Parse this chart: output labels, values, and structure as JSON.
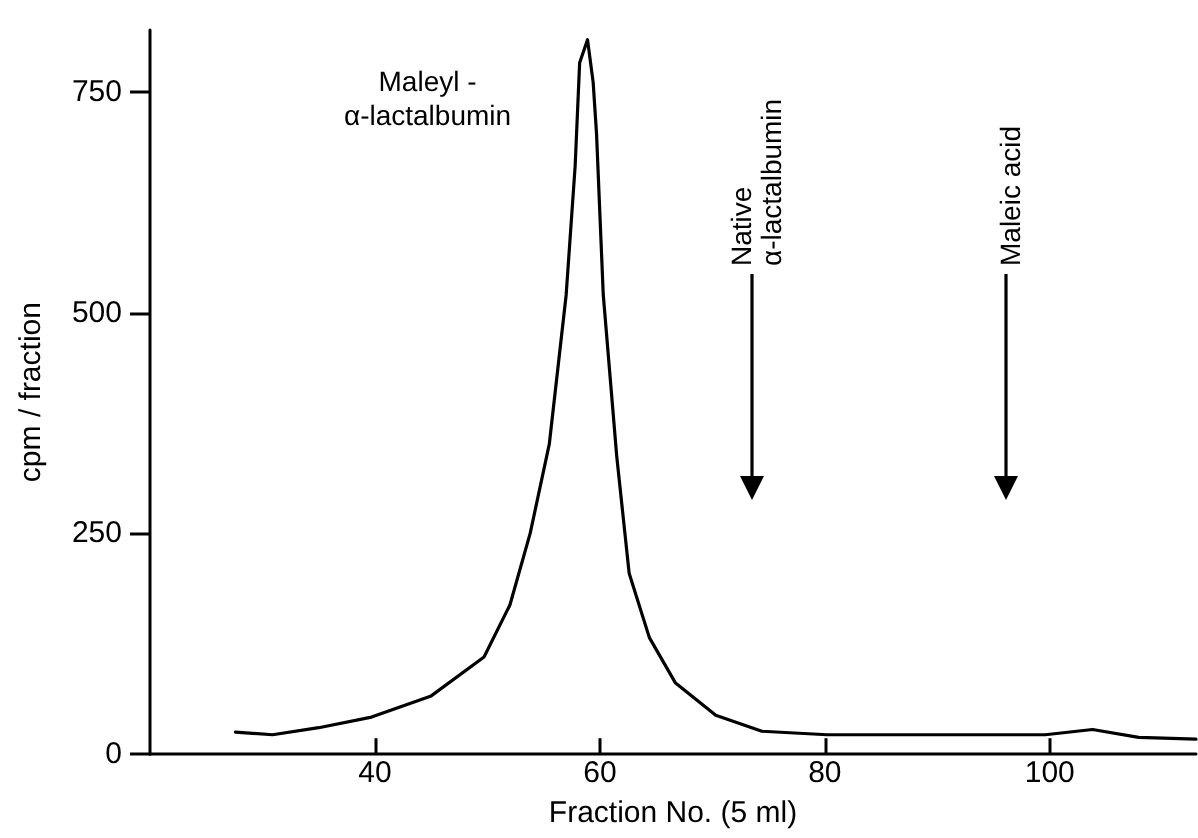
{
  "chart_data": {
    "type": "line",
    "xlabel": "Fraction No. (5 ml)",
    "ylabel": "cpm / fraction",
    "x": [
      27.6,
      30.9,
      35,
      39.7,
      45,
      49.7,
      52,
      53.8,
      55.5,
      57,
      57.8,
      58.2,
      58.9,
      59.4,
      59.7,
      60.3,
      61.5,
      62.6,
      64.4,
      66.7,
      70.3,
      74.4,
      80.2,
      90,
      99.6,
      103.8,
      107.9,
      113
    ],
    "values": [
      25,
      22,
      30,
      42,
      66,
      110,
      169,
      250,
      351,
      520,
      666,
      783,
      809,
      761,
      703,
      520,
      337,
      205,
      132,
      81,
      44,
      26,
      22,
      22,
      22,
      28,
      19,
      17
    ],
    "color": "#000000",
    "xlim": [
      20,
      113
    ],
    "xticks": [
      40,
      60,
      80,
      100
    ],
    "ylim": [
      0,
      820
    ],
    "yticks": [
      0,
      250,
      500,
      750
    ],
    "grid": false,
    "marker": "none",
    "line_style": "solid",
    "annotations": [
      "Maleyl -\nα-lactalbumin",
      "Native\nα-lactalbumin",
      "Maleic acid"
    ]
  }
}
